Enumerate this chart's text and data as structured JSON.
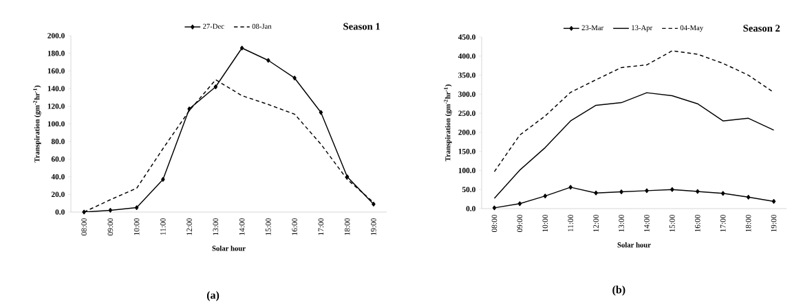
{
  "chart_data": [
    {
      "type": "line",
      "title": "Season 1",
      "xlabel": "Solar hour",
      "ylabel": "Transpiration (gm$^{-2}$hr$^{-1}$)",
      "categories": [
        "08:00",
        "09:00",
        "10:00",
        "11:00",
        "12:00",
        "13:00",
        "14:00",
        "15:00",
        "16:00",
        "17:00",
        "18:00",
        "19:00"
      ],
      "series": [
        {
          "name": "27-Dec",
          "color": "#000000",
          "marker": "diamond",
          "line_style": "solid",
          "values": [
            0,
            2,
            5,
            37,
            117,
            142,
            186,
            172,
            152,
            113,
            40,
            9
          ]
        },
        {
          "name": "08-Jan",
          "color": "#000000",
          "marker": "none",
          "line_style": "dashed",
          "values": [
            0,
            14,
            27,
            72,
            115,
            150,
            132,
            122,
            111,
            77,
            37,
            11
          ]
        }
      ],
      "ylim": [
        0,
        200
      ],
      "yticks": [
        {
          "value": 0,
          "label": "0.0"
        },
        {
          "value": 20,
          "label": "20.0"
        },
        {
          "value": 40,
          "label": "40.0"
        },
        {
          "value": 60,
          "label": "60.0"
        },
        {
          "value": 80,
          "label": "80.0"
        },
        {
          "value": 100,
          "label": "100.0"
        },
        {
          "value": 120,
          "label": "120.0"
        },
        {
          "value": 140,
          "label": "140.0"
        },
        {
          "value": 160,
          "label": "160.0"
        },
        {
          "value": 180,
          "label": "180.0"
        },
        {
          "value": 200,
          "label": "200.0"
        }
      ],
      "legend": "top",
      "grid": false,
      "annotations": [
        "(a)"
      ]
    },
    {
      "type": "line",
      "title": "Season 2",
      "xlabel": "Solar hour",
      "ylabel": "Transpiration (gm$^{-2}$hr$^{-1}$)",
      "categories": [
        "08:00",
        "09:00",
        "10:00",
        "11:00",
        "12:00",
        "13:00",
        "14:00",
        "15:00",
        "16:00",
        "17:00",
        "18:00",
        "19:00"
      ],
      "series": [
        {
          "name": "23-Mar",
          "color": "#000000",
          "marker": "diamond",
          "line_style": "solid",
          "values": [
            2,
            13,
            33,
            56,
            41,
            44,
            47,
            50,
            45,
            40,
            30,
            19
          ]
        },
        {
          "name": "13-Apr",
          "color": "#000000",
          "marker": "none",
          "line_style": "solid",
          "values": [
            27,
            101,
            160,
            230,
            271,
            278,
            304,
            296,
            275,
            230,
            237,
            206
          ]
        },
        {
          "name": "04-May",
          "color": "#000000",
          "marker": "none",
          "line_style": "dashed",
          "values": [
            97,
            193,
            243,
            305,
            338,
            370,
            377,
            414,
            405,
            381,
            350,
            305
          ]
        }
      ],
      "ylim": [
        0,
        450
      ],
      "yticks": [
        {
          "value": 0,
          "label": "0.0"
        },
        {
          "value": 50,
          "label": "50.0"
        },
        {
          "value": 100,
          "label": "100.0"
        },
        {
          "value": 150,
          "label": "150.0"
        },
        {
          "value": 200,
          "label": "200.0"
        },
        {
          "value": 250,
          "label": "250.0"
        },
        {
          "value": 300,
          "label": "300.0"
        },
        {
          "value": 350,
          "label": "350.0"
        },
        {
          "value": 400,
          "label": "400.0"
        },
        {
          "value": 450,
          "label": "450.0"
        }
      ],
      "legend": "top",
      "grid": false,
      "annotations": [
        "(b)"
      ]
    }
  ]
}
